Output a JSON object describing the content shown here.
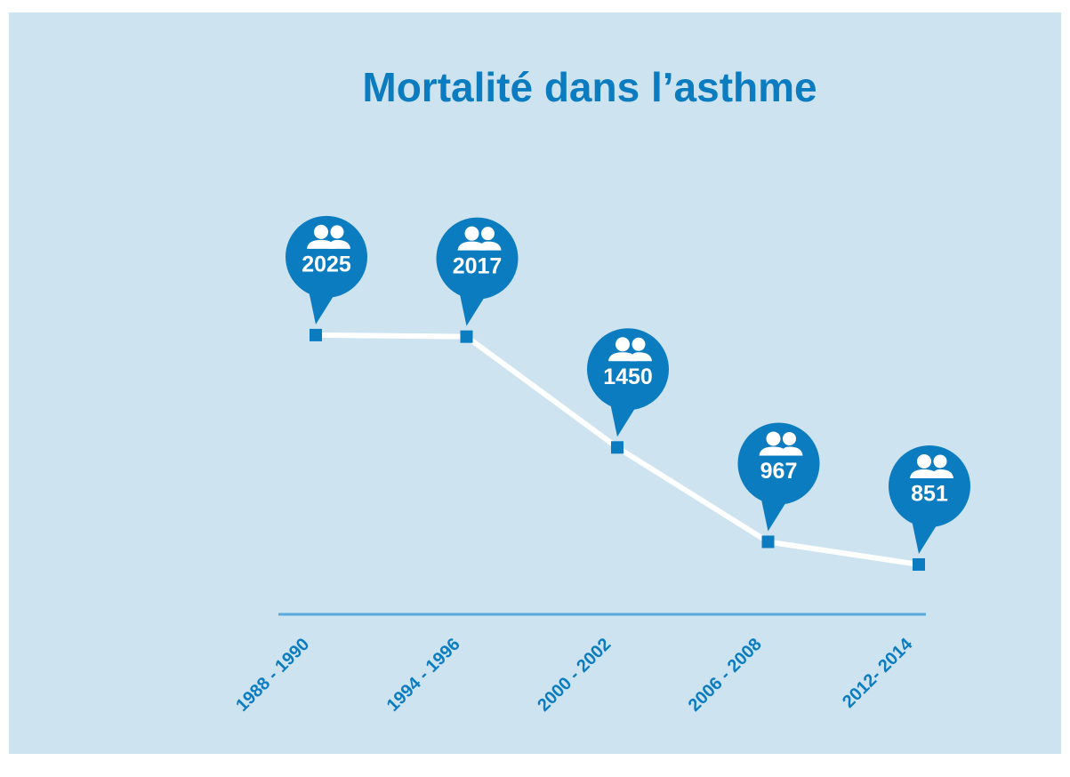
{
  "chart_data": {
    "type": "line",
    "title": "Mortalité dans l’asthme",
    "categories": [
      "1988 - 1990",
      "1994 - 1996",
      "2000 - 2002",
      "2006 - 2008",
      "2012- 2014"
    ],
    "values": [
      2025,
      2017,
      1450,
      967,
      851
    ],
    "color": "#0b7cc0",
    "line_color": "#ffffff"
  }
}
